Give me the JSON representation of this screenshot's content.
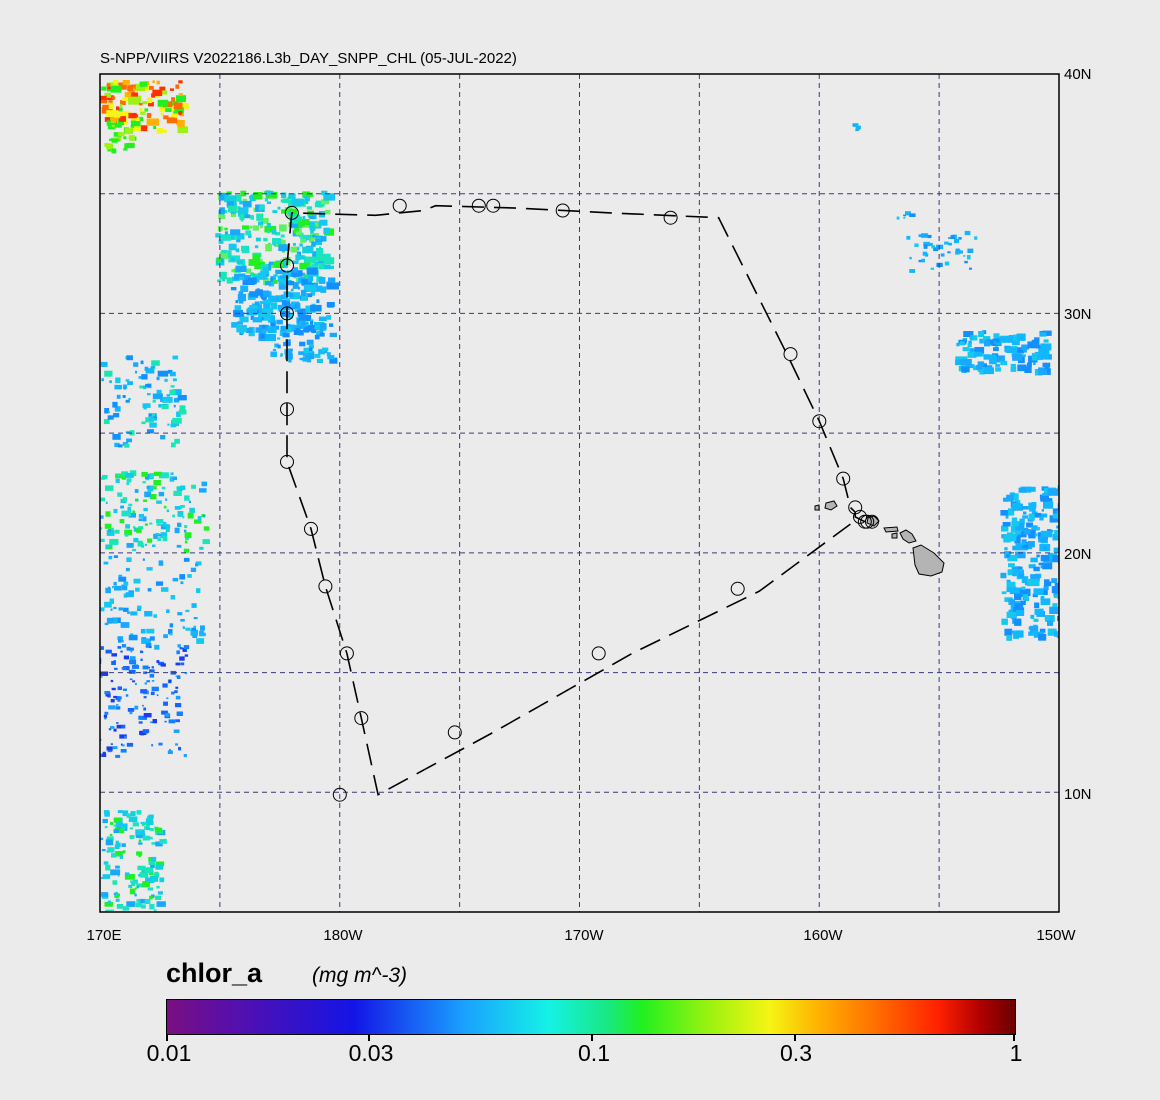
{
  "title": "S-NPP/VIIRS V2022186.L3b_DAY_SNPP_CHL (05-JUL-2022)",
  "map": {
    "lon_range": [
      170,
      210
    ],
    "lat_range": [
      5,
      40
    ],
    "frame_color": "#000000",
    "graticule_color": "#3a3a7a",
    "background_color": "#ebebeb",
    "land_color": "#b4b4b4",
    "lat_labels": [
      {
        "text": "40N",
        "lat": 40
      },
      {
        "text": "30N",
        "lat": 30
      },
      {
        "text": "20N",
        "lat": 20
      },
      {
        "text": "10N",
        "lat": 10
      }
    ],
    "lon_labels": [
      {
        "text": "170E",
        "lon": 170
      },
      {
        "text": "180W",
        "lon": 180
      },
      {
        "text": "170W",
        "lon": 190
      },
      {
        "text": "160W",
        "lon": 200
      },
      {
        "text": "150W",
        "lon": 210
      }
    ],
    "graticule_lons": [
      175,
      180,
      185,
      190,
      195,
      200,
      205
    ],
    "graticule_lats": [
      10,
      15,
      20,
      25,
      30,
      35
    ]
  },
  "cruise_track": {
    "waypoints": [
      {
        "lon": 201.9,
        "lat": 21.3
      },
      {
        "lon": 201.7,
        "lat": 21.4
      },
      {
        "lon": 201.5,
        "lat": 21.5
      },
      {
        "lon": 201.5,
        "lat": 21.7
      },
      {
        "lon": 201.3,
        "lat": 21.9
      },
      {
        "lon": 201.0,
        "lat": 23.1
      },
      {
        "lon": 200.0,
        "lat": 25.5
      },
      {
        "lon": 198.7,
        "lat": 28.2
      },
      {
        "lon": 195.8,
        "lat": 34.0
      },
      {
        "lon": 191.3,
        "lat": 34.2
      },
      {
        "lon": 187.4,
        "lat": 34.4
      },
      {
        "lon": 184.0,
        "lat": 34.5
      },
      {
        "lon": 183.5,
        "lat": 34.3
      },
      {
        "lon": 181.5,
        "lat": 34.1
      },
      {
        "lon": 178.0,
        "lat": 34.2
      },
      {
        "lon": 177.8,
        "lat": 32.0
      },
      {
        "lon": 177.8,
        "lat": 30.0
      },
      {
        "lon": 177.8,
        "lat": 26.0
      },
      {
        "lon": 177.8,
        "lat": 23.8
      },
      {
        "lon": 178.8,
        "lat": 21.0
      },
      {
        "lon": 179.4,
        "lat": 18.6
      },
      {
        "lon": 180.3,
        "lat": 15.8
      },
      {
        "lon": 180.9,
        "lat": 13.1
      },
      {
        "lon": 181.6,
        "lat": 9.9
      },
      {
        "lon": 186.4,
        "lat": 12.5
      },
      {
        "lon": 192.2,
        "lat": 15.8
      },
      {
        "lon": 197.5,
        "lat": 18.4
      },
      {
        "lon": 201.3,
        "lat": 21.2
      }
    ],
    "stations": [
      {
        "lon": 182.5,
        "lat": 34.5
      },
      {
        "lon": 185.8,
        "lat": 34.5
      },
      {
        "lon": 186.4,
        "lat": 34.5
      },
      {
        "lon": 189.3,
        "lat": 34.3
      },
      {
        "lon": 193.8,
        "lat": 34.0
      },
      {
        "lon": 178.0,
        "lat": 34.2
      },
      {
        "lon": 177.8,
        "lat": 32.0
      },
      {
        "lon": 177.8,
        "lat": 30.0
      },
      {
        "lon": 177.8,
        "lat": 26.0
      },
      {
        "lon": 177.8,
        "lat": 23.8
      },
      {
        "lon": 178.8,
        "lat": 21.0
      },
      {
        "lon": 179.4,
        "lat": 18.6
      },
      {
        "lon": 180.3,
        "lat": 15.8
      },
      {
        "lon": 180.9,
        "lat": 13.1
      },
      {
        "lon": 180.0,
        "lat": 9.9
      },
      {
        "lon": 184.8,
        "lat": 12.5
      },
      {
        "lon": 190.8,
        "lat": 15.8
      },
      {
        "lon": 196.6,
        "lat": 18.5
      },
      {
        "lon": 198.8,
        "lat": 28.3
      },
      {
        "lon": 200.0,
        "lat": 25.5
      },
      {
        "lon": 201.0,
        "lat": 23.1
      },
      {
        "lon": 201.5,
        "lat": 21.9
      },
      {
        "lon": 201.7,
        "lat": 21.5
      },
      {
        "lon": 201.9,
        "lat": 21.3
      },
      {
        "lon": 202.0,
        "lat": 21.3
      },
      {
        "lon": 202.2,
        "lat": 21.3
      }
    ]
  },
  "colorbar": {
    "variable": "chlor_a",
    "units": "(mg m^-3)",
    "ticks": [
      {
        "label": "0.01",
        "value": 0.01
      },
      {
        "label": "0.03",
        "value": 0.03
      },
      {
        "label": "0.1",
        "value": 0.1
      },
      {
        "label": "0.3",
        "value": 0.3
      },
      {
        "label": "1",
        "value": 1
      }
    ]
  },
  "icons": {
    "station_marker": "open-circle-icon"
  }
}
